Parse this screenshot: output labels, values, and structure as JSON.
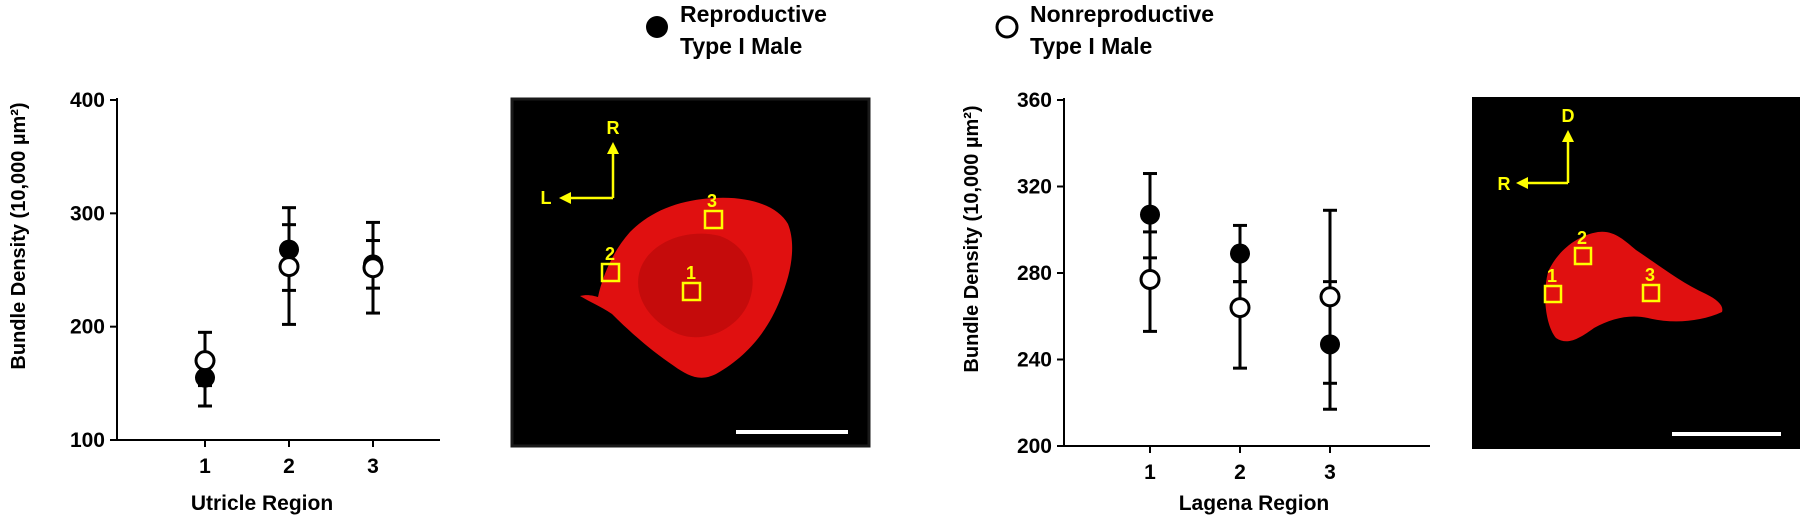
{
  "legend": {
    "filled": "Reproductive",
    "filled_line2": "Type I Male",
    "open": "Nonreproductive",
    "open_line2": "Type I Male"
  },
  "chart_data": [
    {
      "type": "scatter",
      "xlabel": "Utricle Region",
      "ylabel": "Bundle Density (10,000 µm²)",
      "categories": [
        "1",
        "2",
        "3"
      ],
      "ylim": [
        100,
        400
      ],
      "yticks": [
        "100",
        "200",
        "300",
        "400"
      ],
      "series": [
        {
          "name": "Reproductive Type I Male",
          "marker": "filled",
          "values": [
            155,
            268,
            255
          ],
          "err_low": [
            130,
            232,
            234
          ],
          "err_high": [
            175,
            305,
            276
          ]
        },
        {
          "name": "Nonreproductive Type I Male",
          "marker": "open",
          "values": [
            170,
            253,
            252
          ],
          "err_low": [
            148,
            202,
            212
          ],
          "err_high": [
            195,
            290,
            292
          ]
        }
      ]
    },
    {
      "type": "scatter",
      "xlabel": "Lagena Region",
      "ylabel": "Bundle Density (10,000 µm²)",
      "categories": [
        "1",
        "2",
        "3"
      ],
      "ylim": [
        200,
        360
      ],
      "yticks": [
        "200",
        "240",
        "280",
        "320",
        "360"
      ],
      "series": [
        {
          "name": "Reproductive Type I Male",
          "marker": "filled",
          "values": [
            307,
            289,
            247
          ],
          "err_low": [
            287,
            276,
            229
          ],
          "err_high": [
            326,
            302,
            276
          ]
        },
        {
          "name": "Nonreproductive Type I Male",
          "marker": "open",
          "values": [
            277,
            264,
            269
          ],
          "err_low": [
            253,
            236,
            217
          ],
          "err_high": [
            299,
            276,
            309
          ]
        }
      ]
    }
  ],
  "images": [
    {
      "name": "utricle-image",
      "arrow_up": "R",
      "arrow_side": "L",
      "region_labels": [
        "1",
        "2",
        "3"
      ]
    },
    {
      "name": "lagena-image",
      "arrow_up": "D",
      "arrow_side": "R",
      "region_labels": [
        "1",
        "2",
        "3"
      ]
    }
  ]
}
